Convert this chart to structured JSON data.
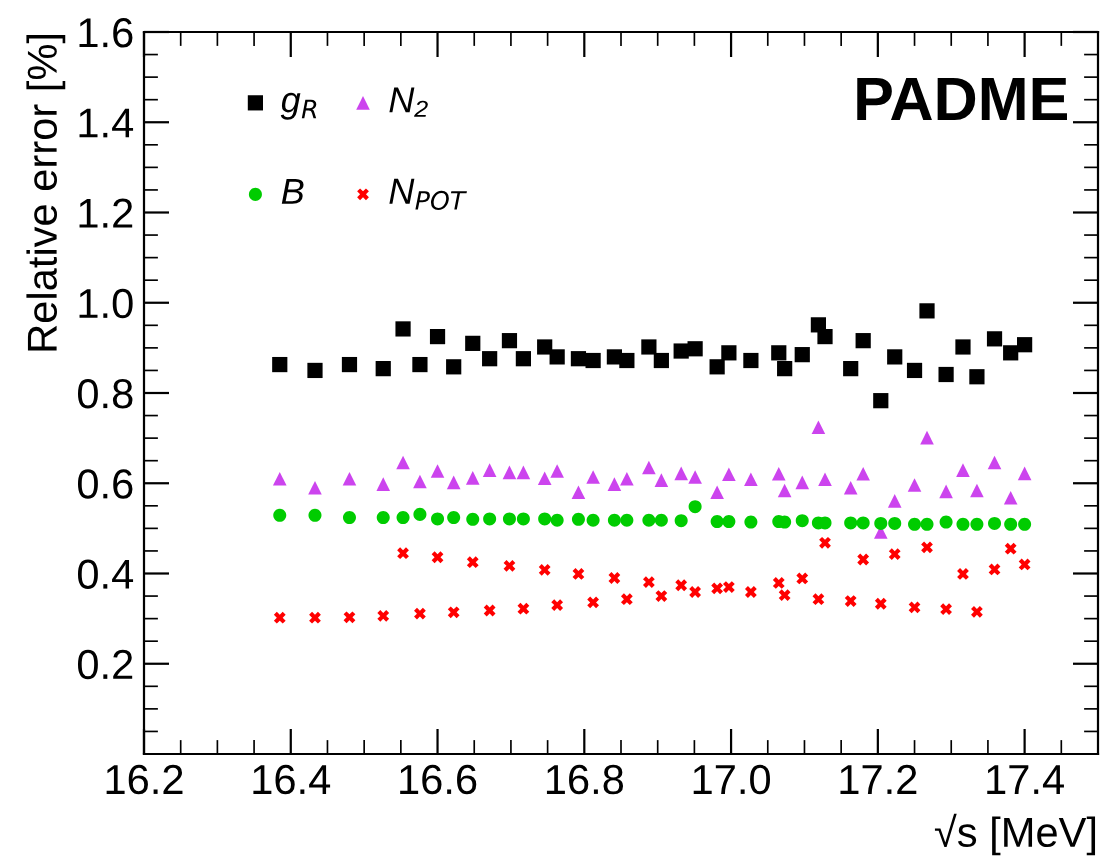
{
  "chart_data": {
    "type": "scatter",
    "xlabel": "√s [MeV]",
    "ylabel": "Relative error [%]",
    "annotations": [
      "PADME"
    ],
    "x": [
      16.385,
      16.433,
      16.48,
      16.526,
      16.553,
      16.576,
      16.6,
      16.622,
      16.648,
      16.671,
      16.698,
      16.717,
      16.746,
      16.763,
      16.792,
      16.812,
      16.841,
      16.858,
      16.888,
      16.905,
      16.932,
      16.951,
      16.981,
      16.997,
      17.027,
      17.065,
      17.073,
      17.097,
      17.119,
      17.128,
      17.163,
      17.18,
      17.204,
      17.223,
      17.25,
      17.267,
      17.293,
      17.316,
      17.335,
      17.359,
      17.381,
      17.4
    ],
    "series": [
      {
        "name": "g$_{R}$",
        "color": "#000000",
        "marker": "square",
        "values": [
          0.863,
          0.85,
          0.863,
          0.854,
          0.942,
          0.863,
          0.925,
          0.858,
          0.91,
          0.876,
          0.916,
          0.876,
          0.902,
          0.88,
          0.876,
          0.872,
          0.88,
          0.872,
          0.902,
          0.872,
          0.893,
          0.898,
          0.858,
          0.889,
          0.872,
          0.889,
          0.854,
          0.885,
          0.951,
          0.925,
          0.854,
          0.916,
          0.783,
          0.88,
          0.85,
          0.982,
          0.841,
          0.902,
          0.836,
          0.92,
          0.889,
          0.907
        ]
      },
      {
        "name": "N₂",
        "color": "#cc44ee",
        "marker": "triangle",
        "values": [
          0.61,
          0.59,
          0.61,
          0.598,
          0.646,
          0.604,
          0.627,
          0.602,
          0.612,
          0.629,
          0.624,
          0.624,
          0.611,
          0.627,
          0.58,
          0.614,
          0.598,
          0.61,
          0.635,
          0.607,
          0.622,
          0.614,
          0.58,
          0.62,
          0.609,
          0.621,
          0.584,
          0.602,
          0.724,
          0.609,
          0.59,
          0.621,
          0.492,
          0.561,
          0.596,
          0.701,
          0.582,
          0.629,
          0.584,
          0.646,
          0.568,
          0.622
        ]
      },
      {
        "name": "B",
        "color": "#00cc00",
        "marker": "circle",
        "values": [
          0.529,
          0.529,
          0.524,
          0.524,
          0.524,
          0.531,
          0.521,
          0.524,
          0.52,
          0.521,
          0.521,
          0.521,
          0.521,
          0.518,
          0.52,
          0.518,
          0.518,
          0.518,
          0.518,
          0.518,
          0.517,
          0.548,
          0.515,
          0.515,
          0.514,
          0.515,
          0.514,
          0.517,
          0.512,
          0.512,
          0.512,
          0.512,
          0.511,
          0.511,
          0.509,
          0.509,
          0.514,
          0.509,
          0.509,
          0.511,
          0.509,
          0.509
        ]
      },
      {
        "name": "N$_{POT}$",
        "color": "#ff0000",
        "marker": "cross",
        "values": [
          0.302,
          0.302,
          0.303,
          0.306,
          0.445,
          0.311,
          0.436,
          0.314,
          0.425,
          0.318,
          0.417,
          0.322,
          0.408,
          0.33,
          0.399,
          0.336,
          0.39,
          0.343,
          0.381,
          0.35,
          0.374,
          0.359,
          0.367,
          0.37,
          0.359,
          0.379,
          0.352,
          0.389,
          0.343,
          0.468,
          0.339,
          0.431,
          0.333,
          0.443,
          0.325,
          0.458,
          0.321,
          0.399,
          0.315,
          0.409,
          0.455,
          0.42
        ]
      }
    ],
    "xlim": [
      16.2,
      17.5
    ],
    "xticks": [
      16.2,
      16.4,
      16.6,
      16.8,
      {
        "value": 17,
        "label": "17.0"
      },
      17.2,
      17.4
    ],
    "ylim": [
      0,
      1.6
    ],
    "yticks": [
      0.2,
      0.4,
      0.6,
      0.8,
      {
        "value": 1,
        "label": "1.0"
      },
      1.2,
      1.4,
      1.6
    ],
    "grid": false,
    "legend": "top left"
  }
}
